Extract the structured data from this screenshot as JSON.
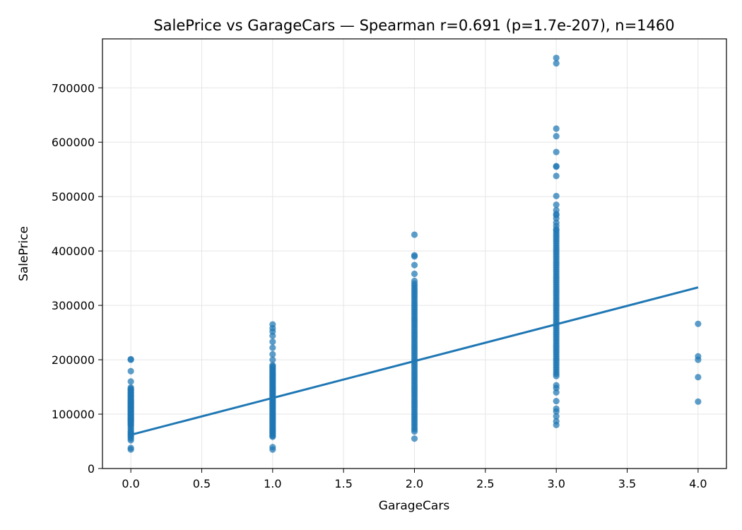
{
  "chart_data": {
    "type": "scatter",
    "title": "SalePrice vs GarageCars — Spearman r=0.691 (p=1.7e-207), n=1460",
    "xlabel": "GarageCars",
    "ylabel": "SalePrice",
    "xlim": [
      -0.2,
      4.2
    ],
    "ylim": [
      0,
      790000
    ],
    "xticks": [
      0.0,
      0.5,
      1.0,
      1.5,
      2.0,
      2.5,
      3.0,
      3.5,
      4.0
    ],
    "xtick_labels": [
      "0.0",
      "0.5",
      "1.0",
      "1.5",
      "2.0",
      "2.5",
      "3.0",
      "3.5",
      "4.0"
    ],
    "yticks": [
      0,
      100000,
      200000,
      300000,
      400000,
      500000,
      600000,
      700000
    ],
    "ytick_labels": [
      "0",
      "100000",
      "200000",
      "300000",
      "400000",
      "500000",
      "600000",
      "700000"
    ],
    "grid": true,
    "colors": {
      "points": "#1f77b4",
      "fit_line": "#1f77b4",
      "grid": "#e5e5e5"
    },
    "series": [
      {
        "x": 0,
        "values": [
          35000,
          37900,
          52000,
          55000,
          58500,
          60000,
          62500,
          64500,
          67000,
          68400,
          72500,
          75000,
          79000,
          80000,
          82000,
          84500,
          85000,
          87000,
          88000,
          89500,
          90000,
          91000,
          93000,
          94000,
          95000,
          97000,
          98000,
          100000,
          101000,
          103000,
          104000,
          105000,
          106500,
          108000,
          109000,
          110000,
          112000,
          113000,
          114500,
          115000,
          117000,
          118000,
          119000,
          120000,
          121500,
          123000,
          124000,
          125000,
          127000,
          128000,
          130000,
          132000,
          133000,
          135000,
          137000,
          139000,
          140000,
          142000,
          144000,
          145000,
          147000,
          149000,
          160000,
          179000,
          200000,
          201000
        ]
      },
      {
        "x": 1,
        "values": [
          34900,
          39300,
          58500,
          60000,
          62000,
          64000,
          66500,
          68000,
          70000,
          72000,
          74000,
          76000,
          78000,
          80000,
          82000,
          84000,
          86000,
          88000,
          90000,
          92000,
          94000,
          96000,
          98000,
          100000,
          102000,
          104000,
          106000,
          108000,
          110000,
          112000,
          114000,
          116000,
          118000,
          120000,
          122000,
          124000,
          126000,
          128000,
          130000,
          132000,
          134000,
          136000,
          138000,
          140000,
          142000,
          144000,
          146000,
          148000,
          150000,
          152000,
          154000,
          156000,
          158000,
          160000,
          162000,
          164000,
          166000,
          168000,
          170000,
          172000,
          174000,
          176000,
          178000,
          180000,
          182000,
          184000,
          186000,
          188000,
          190000,
          200000,
          210000,
          222000,
          233000,
          244000,
          252000,
          258000,
          265000
        ]
      },
      {
        "x": 2,
        "values": [
          55000,
          68000,
          72000,
          76000,
          80000,
          84000,
          88000,
          92000,
          96000,
          100000,
          104000,
          108000,
          112000,
          116000,
          120000,
          124000,
          128000,
          132000,
          136000,
          140000,
          144000,
          148000,
          152000,
          156000,
          160000,
          164000,
          168000,
          172000,
          176000,
          180000,
          184000,
          188000,
          192000,
          196000,
          200000,
          204000,
          208000,
          212000,
          216000,
          220000,
          224000,
          228000,
          232000,
          236000,
          240000,
          244000,
          248000,
          252000,
          256000,
          260000,
          264000,
          268000,
          272000,
          276000,
          280000,
          284000,
          288000,
          292000,
          296000,
          300000,
          304000,
          308000,
          312000,
          316000,
          320000,
          324000,
          328000,
          332000,
          336000,
          340000,
          345000,
          358000,
          374000,
          390000,
          392000,
          430000
        ]
      },
      {
        "x": 3,
        "values": [
          80000,
          87000,
          96000,
          105000,
          110000,
          124000,
          140000,
          148000,
          153000,
          170000,
          174000,
          178000,
          182000,
          186000,
          190000,
          194000,
          198000,
          202000,
          206000,
          210000,
          214000,
          218000,
          222000,
          226000,
          230000,
          234000,
          238000,
          242000,
          246000,
          250000,
          254000,
          258000,
          262000,
          266000,
          270000,
          274000,
          278000,
          282000,
          286000,
          290000,
          294000,
          298000,
          302000,
          306000,
          310000,
          314000,
          318000,
          322000,
          326000,
          330000,
          334000,
          338000,
          342000,
          346000,
          350000,
          354000,
          358000,
          362000,
          366000,
          370000,
          374000,
          378000,
          382000,
          386000,
          390000,
          394000,
          398000,
          402000,
          406000,
          410000,
          414000,
          418000,
          422000,
          426000,
          430000,
          434000,
          438000,
          440000,
          446000,
          452000,
          460000,
          466000,
          468000,
          475000,
          485000,
          501000,
          538000,
          555000,
          556000,
          582000,
          611000,
          625000,
          745000,
          755000
        ]
      },
      {
        "x": 4,
        "values": [
          123000,
          168000,
          200000,
          206300,
          265979
        ]
      }
    ],
    "fit_line": {
      "x": [
        0,
        4
      ],
      "y": [
        62000,
        333000
      ]
    }
  }
}
